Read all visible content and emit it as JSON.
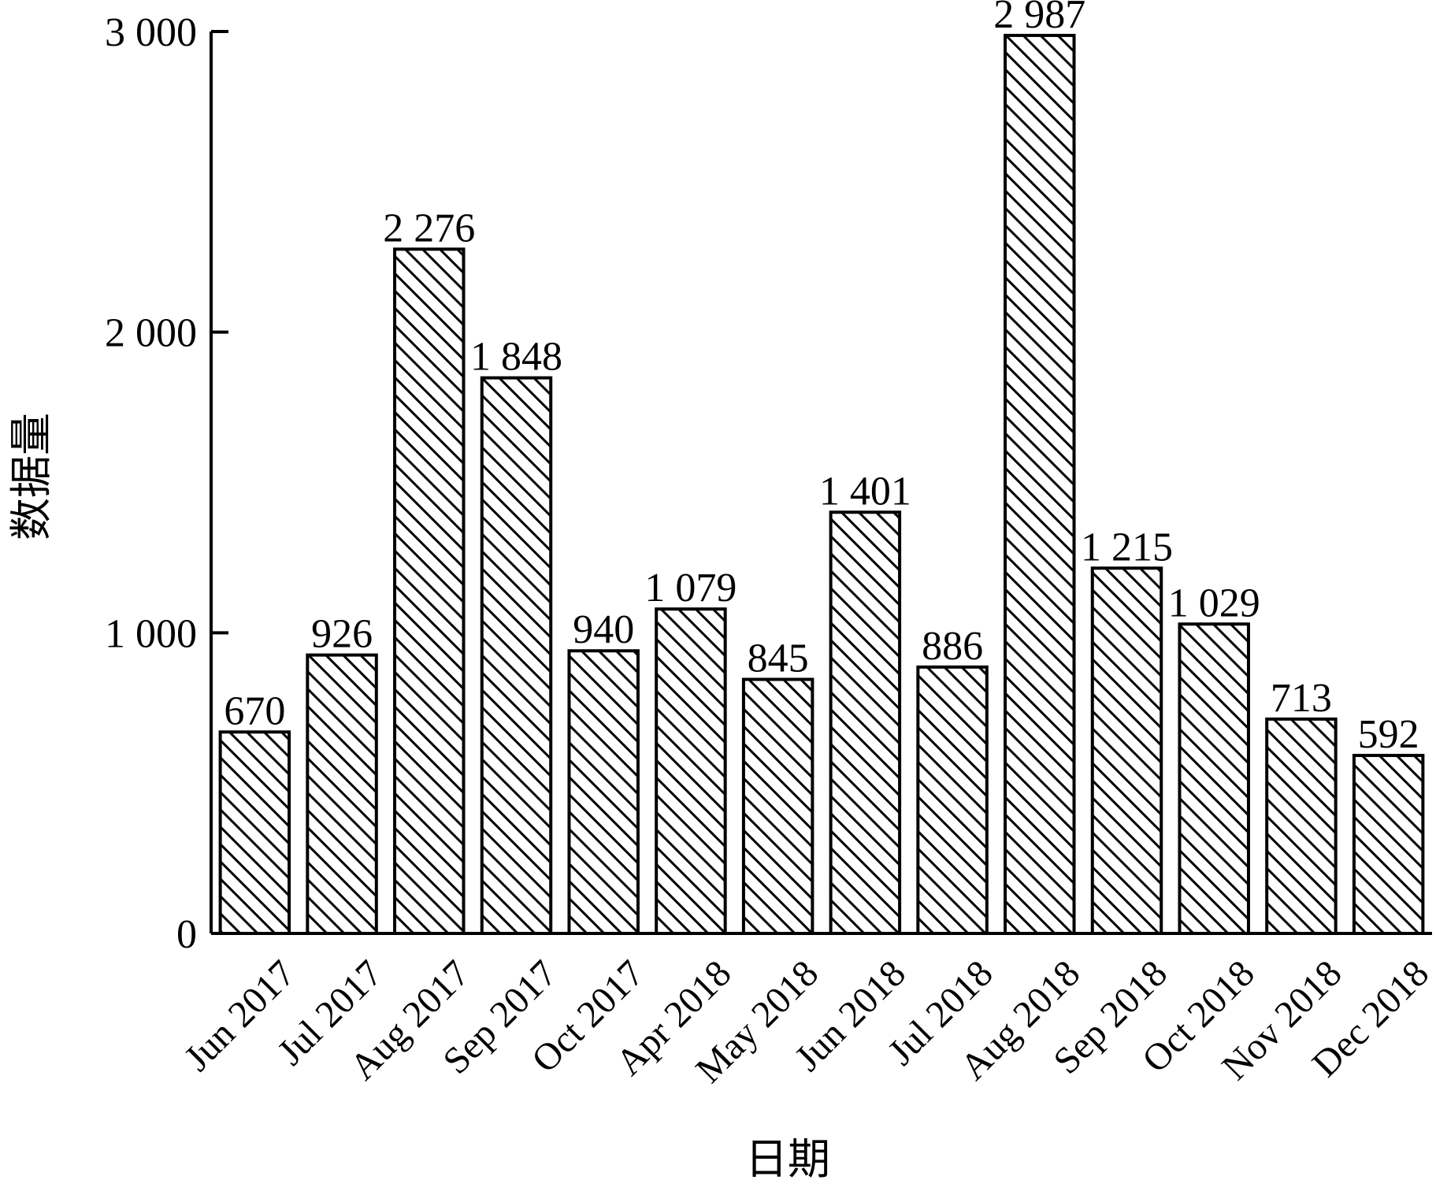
{
  "chart_data": {
    "type": "bar",
    "xlabel": "日期",
    "ylabel": "数据量",
    "ylim": [
      0,
      3000
    ],
    "yticks": [
      0,
      1000,
      2000,
      3000
    ],
    "ytick_labels": [
      "0",
      "1 000",
      "2 000",
      "3 000"
    ],
    "grid": false,
    "legend": "none",
    "bar_fill": "diagonal-hatch",
    "colors": {
      "stroke": "#000000",
      "background": "#ffffff"
    },
    "categories": [
      "Jun 2017",
      "Jul 2017",
      "Aug 2017",
      "Sep 2017",
      "Oct 2017",
      "Apr 2018",
      "May 2018",
      "Jun 2018",
      "Jul 2018",
      "Aug 2018",
      "Sep 2018",
      "Oct 2018",
      "Nov  2018",
      "Dec 2018"
    ],
    "values": [
      670,
      926,
      2276,
      1848,
      940,
      1079,
      845,
      1401,
      886,
      2987,
      1215,
      1029,
      713,
      592
    ],
    "value_labels": [
      "670",
      "926",
      "2 276",
      "1 848",
      "940",
      "1 079",
      "845",
      "1 401",
      "886",
      "2 987",
      "1 215",
      "1 029",
      "713",
      "592"
    ]
  }
}
